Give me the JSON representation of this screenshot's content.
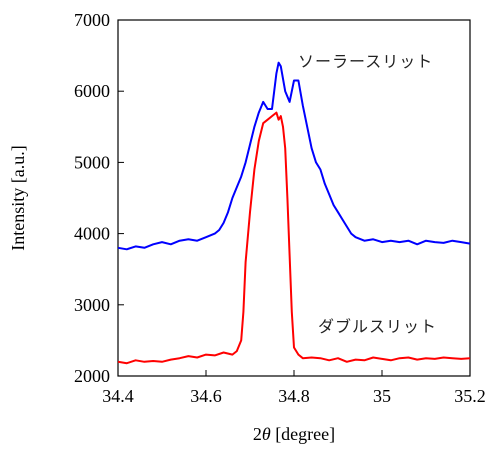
{
  "chart_data": {
    "type": "line",
    "title": "",
    "xlabel_prefix": "2",
    "xlabel_theta": "θ",
    "xlabel_suffix": " [degree]",
    "ylabel": "Intensity [a.u.]",
    "xlim": [
      34.4,
      35.2
    ],
    "ylim": [
      2000,
      7000
    ],
    "x_ticks": [
      34.4,
      34.6,
      34.8,
      35.0,
      35.2
    ],
    "x_tick_labels": [
      "34.4",
      "34.6",
      "34.8",
      "35",
      "35.2"
    ],
    "y_ticks": [
      2000,
      3000,
      4000,
      5000,
      6000,
      7000
    ],
    "y_tick_labels": [
      "2000",
      "3000",
      "4000",
      "5000",
      "6000",
      "7000"
    ],
    "grid": false,
    "legend": "none",
    "series": [
      {
        "name": "ソーラースリット",
        "color": "#0000ff",
        "x": [
          34.4,
          34.42,
          34.44,
          34.46,
          34.48,
          34.5,
          34.52,
          34.54,
          34.56,
          34.58,
          34.6,
          34.62,
          34.63,
          34.64,
          34.65,
          34.66,
          34.67,
          34.68,
          34.69,
          34.7,
          34.71,
          34.72,
          34.73,
          34.74,
          34.75,
          34.755,
          34.76,
          34.765,
          34.77,
          34.78,
          34.79,
          34.8,
          34.81,
          34.82,
          34.83,
          34.84,
          34.85,
          34.86,
          34.87,
          34.88,
          34.89,
          34.9,
          34.91,
          34.92,
          34.93,
          34.94,
          34.96,
          34.98,
          35.0,
          35.02,
          35.04,
          35.06,
          35.08,
          35.1,
          35.12,
          35.14,
          35.16,
          35.18,
          35.2
        ],
        "y": [
          3800,
          3780,
          3820,
          3800,
          3850,
          3880,
          3850,
          3900,
          3920,
          3900,
          3950,
          4000,
          4050,
          4150,
          4300,
          4500,
          4650,
          4800,
          5000,
          5250,
          5500,
          5700,
          5850,
          5750,
          5750,
          6000,
          6250,
          6400,
          6350,
          6000,
          5850,
          6150,
          6150,
          5800,
          5500,
          5200,
          5000,
          4900,
          4700,
          4550,
          4400,
          4300,
          4200,
          4100,
          4000,
          3950,
          3900,
          3920,
          3880,
          3900,
          3880,
          3900,
          3850,
          3900,
          3880,
          3870,
          3900,
          3880,
          3860
        ]
      },
      {
        "name": "ダブルスリット",
        "color": "#ff0000",
        "x": [
          34.4,
          34.42,
          34.44,
          34.46,
          34.48,
          34.5,
          34.52,
          34.54,
          34.56,
          34.58,
          34.6,
          34.62,
          34.64,
          34.66,
          34.67,
          34.68,
          34.685,
          34.69,
          34.7,
          34.71,
          34.72,
          34.73,
          34.74,
          34.75,
          34.76,
          34.765,
          34.77,
          34.775,
          34.78,
          34.785,
          34.79,
          34.795,
          34.8,
          34.81,
          34.82,
          34.84,
          34.86,
          34.88,
          34.9,
          34.92,
          34.94,
          34.96,
          34.98,
          35.0,
          35.02,
          35.04,
          35.06,
          35.08,
          35.1,
          35.12,
          35.14,
          35.16,
          35.18,
          35.2
        ],
        "y": [
          2200,
          2180,
          2220,
          2200,
          2210,
          2200,
          2230,
          2250,
          2280,
          2260,
          2300,
          2290,
          2330,
          2300,
          2350,
          2500,
          2900,
          3600,
          4300,
          4900,
          5300,
          5550,
          5600,
          5650,
          5700,
          5600,
          5650,
          5500,
          5200,
          4500,
          3700,
          2900,
          2400,
          2300,
          2250,
          2260,
          2250,
          2220,
          2250,
          2200,
          2230,
          2220,
          2260,
          2240,
          2220,
          2250,
          2260,
          2230,
          2250,
          2240,
          2260,
          2250,
          2240,
          2250
        ]
      }
    ],
    "annotations": [
      {
        "text": "ソーラースリット",
        "series": 0
      },
      {
        "text": "ダブルスリット",
        "series": 1
      }
    ]
  }
}
